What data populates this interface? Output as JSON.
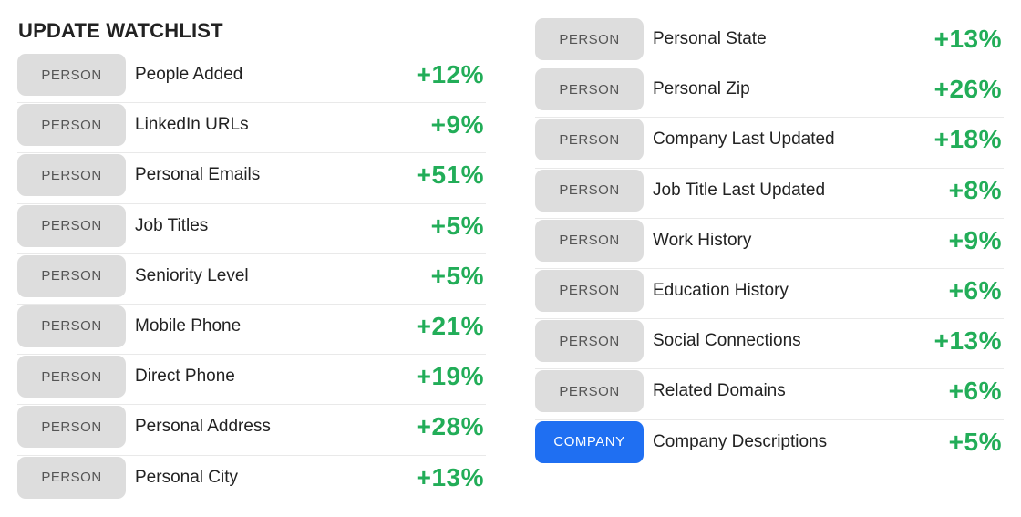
{
  "title": "UPDATE WATCHLIST",
  "colors": {
    "positive": "#22ad58",
    "person_badge": "#dddddd",
    "company_badge": "#1f6ff2"
  },
  "left": [
    {
      "type": "PERSON",
      "label": "People Added",
      "change": "+12%"
    },
    {
      "type": "PERSON",
      "label": "LinkedIn URLs",
      "change": "+9%"
    },
    {
      "type": "PERSON",
      "label": "Personal Emails",
      "change": "+51%"
    },
    {
      "type": "PERSON",
      "label": "Job Titles",
      "change": "+5%"
    },
    {
      "type": "PERSON",
      "label": "Seniority Level",
      "change": "+5%"
    },
    {
      "type": "PERSON",
      "label": "Mobile Phone",
      "change": "+21%"
    },
    {
      "type": "PERSON",
      "label": "Direct Phone",
      "change": "+19%"
    },
    {
      "type": "PERSON",
      "label": "Personal Address",
      "change": "+28%"
    },
    {
      "type": "PERSON",
      "label": "Personal City",
      "change": "+13%"
    }
  ],
  "right": [
    {
      "type": "PERSON",
      "label": "Personal State",
      "change": "+13%"
    },
    {
      "type": "PERSON",
      "label": "Personal Zip",
      "change": "+26%"
    },
    {
      "type": "PERSON",
      "label": "Company Last Updated",
      "change": "+18%"
    },
    {
      "type": "PERSON",
      "label": "Job Title Last Updated",
      "change": "+8%"
    },
    {
      "type": "PERSON",
      "label": "Work History",
      "change": "+9%"
    },
    {
      "type": "PERSON",
      "label": "Education History",
      "change": "+6%"
    },
    {
      "type": "PERSON",
      "label": "Social Connections",
      "change": "+13%"
    },
    {
      "type": "PERSON",
      "label": "Related Domains",
      "change": "+6%"
    },
    {
      "type": "COMPANY",
      "label": "Company Descriptions",
      "change": "+5%"
    }
  ]
}
